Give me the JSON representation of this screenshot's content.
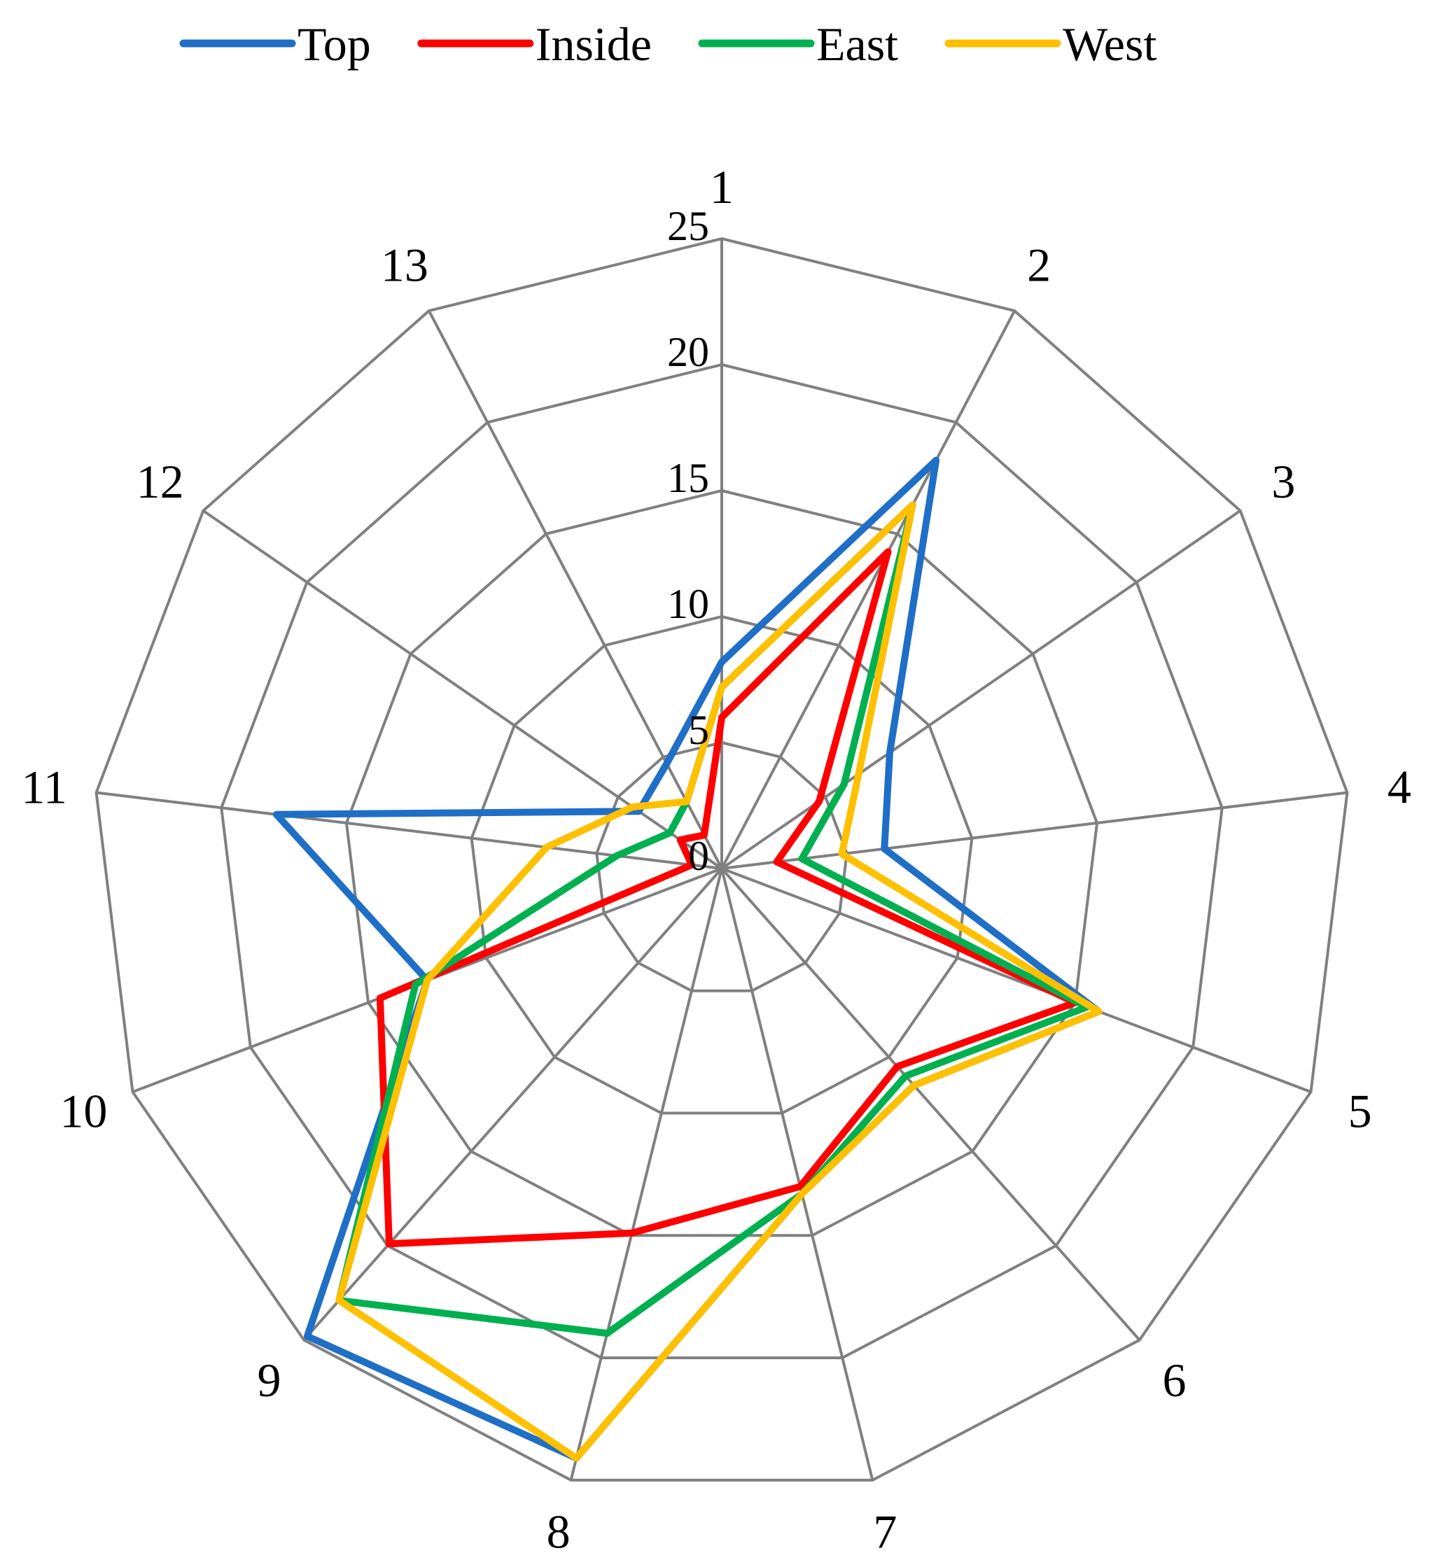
{
  "chart_data": {
    "type": "radar",
    "title": "",
    "categories": [
      "1",
      "2",
      "3",
      "4",
      "5",
      "6",
      "7",
      "8",
      "9",
      "10",
      "11",
      "12",
      "13"
    ],
    "r_range": [
      0,
      25
    ],
    "r_ticks": [
      "0",
      "5",
      "10",
      "15",
      "20",
      "25"
    ],
    "grid": true,
    "legend_position": "top",
    "series": [
      {
        "name": "Top",
        "color": "#1f6fc6",
        "values": [
          8.2,
          18.3,
          8.1,
          6.5,
          16.0,
          11.5,
          13.3,
          24.1,
          24.8,
          12.5,
          17.8,
          4.0,
          4.7
        ]
      },
      {
        "name": "Inside",
        "color": "#ff0000",
        "values": [
          6.0,
          14.2,
          4.7,
          2.2,
          15.0,
          10.5,
          13.0,
          14.9,
          19.9,
          14.5,
          1.2,
          2.0,
          1.5
        ]
      },
      {
        "name": "East",
        "color": "#00b050",
        "values": [
          7.2,
          16.3,
          5.9,
          3.2,
          15.5,
          11.0,
          13.3,
          19.0,
          22.9,
          13.0,
          4.2,
          2.5,
          3.0
        ]
      },
      {
        "name": "West",
        "color": "#ffc000",
        "values": [
          7.2,
          16.3,
          6.6,
          4.8,
          16.0,
          11.5,
          13.3,
          24.1,
          22.9,
          12.5,
          7.0,
          4.3,
          3.0
        ]
      }
    ]
  }
}
